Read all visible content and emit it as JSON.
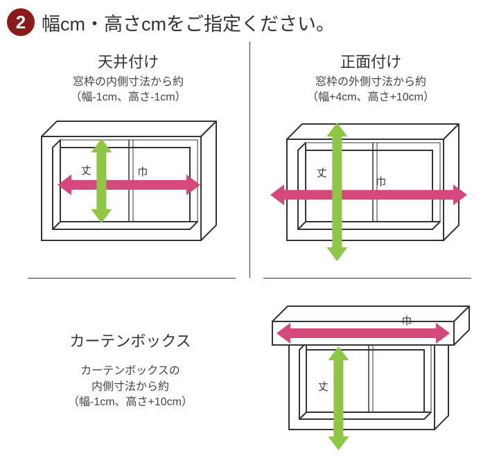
{
  "colors": {
    "badge_bg": "#8b1a1a",
    "badge_text": "#ffffff",
    "text": "#333333",
    "desc": "#444444",
    "line": "#333333",
    "window_fill": "#ffffff",
    "arrow_width": "#d5487a",
    "arrow_height": "#8fc646",
    "label": "#333333"
  },
  "header": {
    "badge": "2",
    "title": "幅cm・高さcmをご指定ください。"
  },
  "panels": {
    "ceiling": {
      "title": "天井付け",
      "desc1": "窓枠の内側寸法から約",
      "desc2": "（幅-1cm、高さ-1cm）",
      "label_height": "丈",
      "label_width": "巾"
    },
    "front": {
      "title": "正面付け",
      "desc1": "窓枠の外側寸法から約",
      "desc2": "（幅+4cm、高さ+10cm）",
      "label_height": "丈",
      "label_width": "巾"
    },
    "box": {
      "title": "カーテンボックス",
      "desc1": "カーテンボックスの",
      "desc2": "内側寸法から約",
      "desc3": "（幅-1cm、高さ+10cm）",
      "label_height": "丈",
      "label_width": "巾"
    }
  },
  "geom": {
    "stroke_width": 2,
    "arrow_shaft_w": 14,
    "arrow_head_w": 30,
    "arrow_head_len": 20,
    "label_fontsize": 15
  }
}
